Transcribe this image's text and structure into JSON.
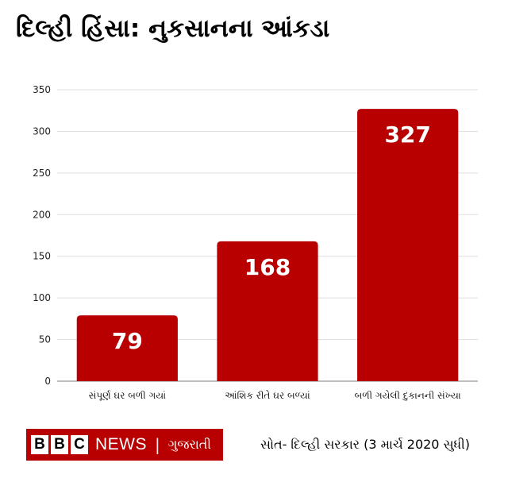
{
  "title": "દિલ્હી હિંસા: નુકસાનના આંકડા",
  "chart_data": {
    "type": "bar",
    "categories": [
      "સંપૂર્ણ ઘર બળી ગયાં",
      "આંશિક રીતે ઘર બળ્યાં",
      "બળી ગયેલી દુકાનની સંખ્યા"
    ],
    "values": [
      79,
      168,
      327
    ],
    "data_labels": [
      "79",
      "168",
      "327"
    ],
    "ylim": [
      0,
      350
    ],
    "yticks": [
      0,
      50,
      100,
      150,
      200,
      250,
      300,
      350
    ],
    "grid": true,
    "legend": "none",
    "bar_color": "#b80000"
  },
  "footer": {
    "bbc_letters": [
      "B",
      "B",
      "C"
    ],
    "news": "NEWS",
    "separator": "|",
    "language": "ગુજરાતી",
    "source": "સોત- દિલ્હી સરકાર (3 માર્ચ 2020 સુધી)"
  },
  "colors": {
    "brand_red": "#b80000",
    "grid": "#dddddd",
    "axis": "#999999"
  }
}
